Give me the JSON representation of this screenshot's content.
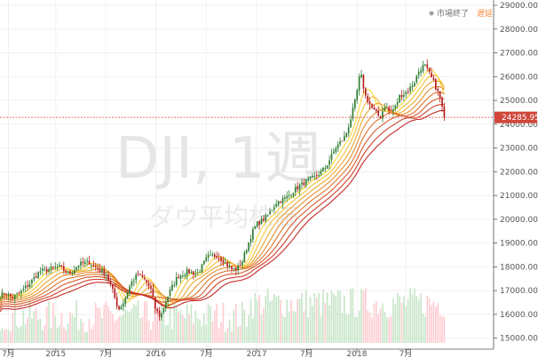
{
  "status": {
    "market_closed": "市場終了",
    "delayed": "遅延",
    "dot_color": "#9e9e9e",
    "delayed_color": "#f5893b"
  },
  "watermark": {
    "symbol": "DJI, 1週",
    "name": "ダウ平均株価"
  },
  "price_label": {
    "text": "24285.95",
    "value": 24285.95,
    "color": "#d0463a"
  },
  "colors": {
    "up": "#2e7d32",
    "down": "#b71c1c",
    "volume_up": "#c8e6c9",
    "volume_down": "#ffcdd2",
    "ribbon_fast": "#fdd835",
    "ribbon_slow": "#c62828"
  },
  "chart_data": {
    "type": "candlestick",
    "title": "DJI, 1週",
    "subtitle": "ダウ平均株価",
    "ylim": [
      14800,
      29000
    ],
    "y_ticks": [
      "15000.00",
      "16000.00",
      "17000.00",
      "18000.00",
      "19000.00",
      "20000.00",
      "21000.00",
      "22000.00",
      "23000.00",
      "24000.00",
      "25000.00",
      "26000.00",
      "27000.00",
      "28000.00",
      "29000.00"
    ],
    "x_labels": [
      "7月",
      "2015",
      "7月",
      "2016",
      "7月",
      "2017",
      "7月",
      "2018",
      "7月"
    ],
    "x_label_pos": [
      0.017,
      0.113,
      0.214,
      0.316,
      0.418,
      0.52,
      0.621,
      0.723,
      0.822
    ],
    "last_price": 24285.95,
    "ribbon_offsets": [
      0.0,
      0.008,
      0.017,
      0.027,
      0.038,
      0.05,
      0.063,
      0.077
    ],
    "close_anchors": [
      [
        0.0,
        16800
      ],
      [
        0.01,
        16900
      ],
      [
        0.025,
        16700
      ],
      [
        0.04,
        16900
      ],
      [
        0.06,
        17300
      ],
      [
        0.08,
        17800
      ],
      [
        0.1,
        17900
      ],
      [
        0.12,
        18000
      ],
      [
        0.14,
        17700
      ],
      [
        0.16,
        18100
      ],
      [
        0.18,
        18200
      ],
      [
        0.2,
        17900
      ],
      [
        0.215,
        17700
      ],
      [
        0.225,
        17200
      ],
      [
        0.24,
        16200
      ],
      [
        0.25,
        16500
      ],
      [
        0.265,
        17300
      ],
      [
        0.28,
        17700
      ],
      [
        0.295,
        17400
      ],
      [
        0.305,
        17100
      ],
      [
        0.315,
        16200
      ],
      [
        0.325,
        15900
      ],
      [
        0.335,
        16500
      ],
      [
        0.345,
        17000
      ],
      [
        0.36,
        17600
      ],
      [
        0.38,
        17800
      ],
      [
        0.4,
        17700
      ],
      [
        0.42,
        18400
      ],
      [
        0.44,
        18500
      ],
      [
        0.46,
        18100
      ],
      [
        0.47,
        17900
      ],
      [
        0.48,
        17900
      ],
      [
        0.49,
        18200
      ],
      [
        0.5,
        18800
      ],
      [
        0.51,
        19400
      ],
      [
        0.52,
        19800
      ],
      [
        0.54,
        20100
      ],
      [
        0.56,
        20700
      ],
      [
        0.58,
        20900
      ],
      [
        0.6,
        21300
      ],
      [
        0.62,
        21600
      ],
      [
        0.64,
        21800
      ],
      [
        0.66,
        22200
      ],
      [
        0.68,
        23000
      ],
      [
        0.7,
        23500
      ],
      [
        0.71,
        24200
      ],
      [
        0.72,
        25000
      ],
      [
        0.73,
        26200
      ],
      [
        0.74,
        25200
      ],
      [
        0.75,
        24800
      ],
      [
        0.76,
        24500
      ],
      [
        0.77,
        24300
      ],
      [
        0.78,
        24800
      ],
      [
        0.79,
        24500
      ],
      [
        0.8,
        24700
      ],
      [
        0.81,
        25200
      ],
      [
        0.82,
        25300
      ],
      [
        0.83,
        25500
      ],
      [
        0.84,
        25800
      ],
      [
        0.85,
        26300
      ],
      [
        0.86,
        26500
      ],
      [
        0.87,
        26100
      ],
      [
        0.88,
        25700
      ],
      [
        0.89,
        25200
      ],
      [
        0.9,
        24300
      ]
    ]
  }
}
